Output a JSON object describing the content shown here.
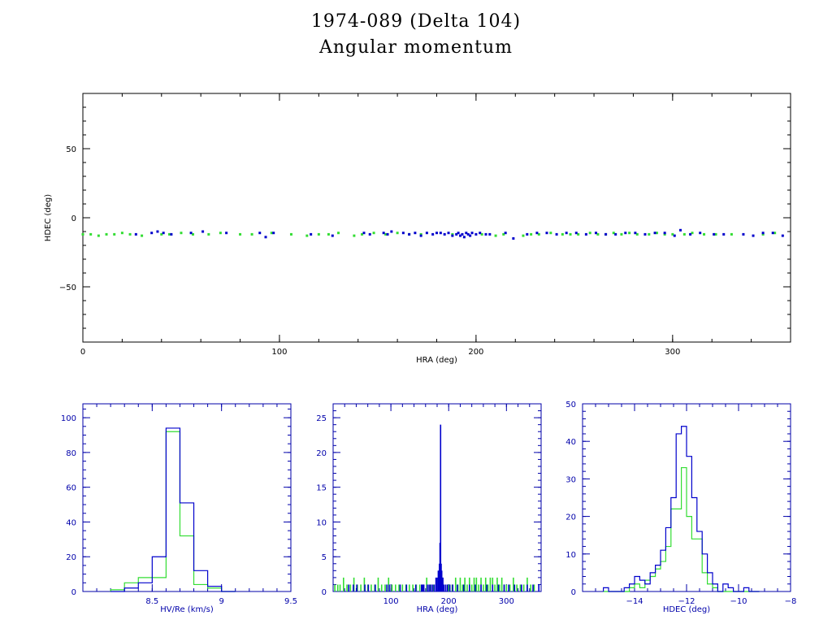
{
  "header": {
    "title": "1974-089 (Delta 104)",
    "subtitle": "Angular momentum"
  },
  "colors": {
    "blue": "#0000cc",
    "green": "#33dd33",
    "axis_main": "#000000",
    "axis_hist": "#0000aa"
  },
  "chart_data": [
    {
      "id": "scatter",
      "type": "scatter",
      "xlabel": "HRA (deg)",
      "ylabel": "HDEC (deg)",
      "xlim": [
        0,
        360
      ],
      "ylim": [
        -90,
        90
      ],
      "xticks": [
        0,
        100,
        200,
        300
      ],
      "yticks": [
        50,
        0,
        -50
      ],
      "series": [
        {
          "color": "blue",
          "x": [
            27,
            35,
            38,
            41,
            45,
            55,
            61,
            73,
            90,
            93,
            97,
            116,
            127,
            143,
            146,
            153,
            155,
            157,
            163,
            166,
            169,
            172,
            175,
            178,
            180,
            182,
            184,
            186,
            188,
            190,
            191,
            192,
            193,
            194,
            195,
            196,
            197,
            198,
            200,
            202,
            205,
            207,
            215,
            219,
            226,
            231,
            236,
            241,
            246,
            251,
            256,
            261,
            266,
            271,
            276,
            281,
            286,
            291,
            296,
            301,
            304,
            309,
            314,
            321,
            326,
            336,
            341,
            346,
            351,
            356
          ],
          "y": [
            -12,
            -11,
            -10,
            -11,
            -12,
            -11,
            -10,
            -11,
            -11,
            -14,
            -11,
            -12,
            -13,
            -11,
            -12,
            -11,
            -12,
            -10,
            -11,
            -12,
            -11,
            -13,
            -11,
            -12,
            -11,
            -11,
            -12,
            -11,
            -13,
            -12,
            -11,
            -13,
            -12,
            -14,
            -11,
            -12,
            -13,
            -11,
            -12,
            -11,
            -12,
            -12,
            -11,
            -15,
            -12,
            -11,
            -11,
            -12,
            -11,
            -11,
            -12,
            -11,
            -12,
            -12,
            -11,
            -11,
            -12,
            -11,
            -11,
            -13,
            -9,
            -12,
            -11,
            -12,
            -12,
            -12,
            -13,
            -11,
            -11,
            -13
          ]
        },
        {
          "color": "green",
          "x": [
            0,
            4,
            8,
            12,
            16,
            20,
            24,
            30,
            40,
            44,
            50,
            56,
            64,
            70,
            80,
            86,
            96,
            106,
            114,
            120,
            125,
            130,
            138,
            142,
            148,
            154,
            160,
            166,
            172,
            188,
            203,
            210,
            214,
            224,
            228,
            232,
            238,
            244,
            248,
            252,
            258,
            262,
            266,
            270,
            274,
            278,
            282,
            288,
            292,
            296,
            300,
            306,
            310,
            316,
            322,
            330,
            346,
            352
          ],
          "y": [
            -12,
            -12,
            -13,
            -12,
            -12,
            -11,
            -12,
            -13,
            -12,
            -12,
            -11,
            -12,
            -12,
            -11,
            -12,
            -12,
            -11,
            -12,
            -13,
            -12,
            -12,
            -11,
            -13,
            -12,
            -11,
            -12,
            -11,
            -12,
            -12,
            -12,
            -12,
            -13,
            -12,
            -13,
            -12,
            -12,
            -11,
            -12,
            -12,
            -12,
            -11,
            -12,
            -12,
            -11,
            -12,
            -11,
            -12,
            -12,
            -11,
            -12,
            -12,
            -12,
            -11,
            -12,
            -12,
            -12,
            -12,
            -11
          ]
        }
      ]
    },
    {
      "id": "hist-hv",
      "type": "bar",
      "xlabel": "HV/Re (km/s)",
      "xlim": [
        8.0,
        9.5
      ],
      "ylim": [
        0,
        108
      ],
      "xticks": [
        8.5,
        9,
        9.5
      ],
      "xticklabels": [
        "8.5",
        "9",
        "9.5"
      ],
      "yticks": [
        0,
        20,
        40,
        60,
        80,
        100
      ],
      "bin_edges": [
        8.2,
        8.3,
        8.4,
        8.5,
        8.6,
        8.7,
        8.8,
        8.9,
        9.0,
        9.1
      ],
      "series": [
        {
          "color": "blue",
          "values": [
            0,
            2,
            5,
            20,
            94,
            51,
            12,
            3,
            0
          ]
        },
        {
          "color": "green",
          "values": [
            1,
            5,
            8,
            8,
            92,
            32,
            4,
            2,
            0
          ]
        }
      ]
    },
    {
      "id": "hist-hra",
      "type": "bar",
      "xlabel": "HRA (deg)",
      "xlim": [
        0,
        360
      ],
      "ylim": [
        0,
        27
      ],
      "xticks": [
        100,
        200,
        300
      ],
      "yticks": [
        0,
        5,
        10,
        15,
        20,
        25
      ],
      "series": [
        {
          "color": "green",
          "x": [
            3,
            8,
            12,
            18,
            24,
            30,
            36,
            42,
            48,
            54,
            60,
            66,
            72,
            78,
            84,
            90,
            96,
            102,
            108,
            114,
            120,
            126,
            132,
            138,
            144,
            150,
            156,
            162,
            168,
            174,
            200,
            206,
            212,
            216,
            220,
            224,
            228,
            232,
            236,
            240,
            244,
            248,
            252,
            256,
            260,
            264,
            268,
            272,
            276,
            280,
            284,
            288,
            292,
            296,
            300,
            306,
            312,
            318,
            324,
            330,
            336,
            342,
            348
          ],
          "values": [
            1,
            1,
            1,
            2,
            1,
            1,
            2,
            1,
            1,
            2,
            1,
            1,
            1,
            2,
            1,
            1,
            2,
            1,
            1,
            1,
            1,
            1,
            1,
            1,
            1,
            1,
            1,
            2,
            1,
            1,
            1,
            1,
            2,
            1,
            2,
            1,
            2,
            1,
            2,
            1,
            2,
            2,
            1,
            2,
            1,
            2,
            1,
            2,
            2,
            1,
            2,
            1,
            2,
            1,
            1,
            1,
            2,
            1,
            1,
            1,
            2,
            1,
            1
          ]
        },
        {
          "color": "blue",
          "x": [
            27,
            35,
            41,
            55,
            61,
            73,
            93,
            97,
            116,
            127,
            143,
            153,
            155,
            157,
            163,
            166,
            169,
            172,
            175,
            178,
            180,
            182,
            183,
            184,
            185,
            186,
            187,
            188,
            189,
            190,
            192,
            195,
            198,
            202,
            207,
            215,
            226,
            236,
            246,
            256,
            266,
            276,
            286,
            296,
            304,
            314,
            326,
            336,
            346,
            356
          ],
          "values": [
            1,
            1,
            1,
            1,
            1,
            1,
            1,
            1,
            1,
            1,
            1,
            1,
            1,
            1,
            1,
            1,
            1,
            1,
            1,
            2,
            2,
            3,
            3,
            4,
            7,
            24,
            4,
            3,
            2,
            2,
            1,
            1,
            1,
            1,
            1,
            1,
            1,
            1,
            1,
            1,
            1,
            1,
            1,
            1,
            1,
            1,
            1,
            1,
            1,
            1
          ]
        }
      ]
    },
    {
      "id": "hist-hdec",
      "type": "bar",
      "xlabel": "HDEC (deg)",
      "xlim": [
        -16,
        -8
      ],
      "ylim": [
        0,
        50
      ],
      "xticks": [
        -14,
        -12,
        -10,
        -8
      ],
      "xticklabels": [
        "-14",
        "-12",
        "-10",
        "-8"
      ],
      "yticks": [
        0,
        10,
        20,
        30,
        40,
        50
      ],
      "bin_edges": [
        -15.2,
        -15.0,
        -14.8,
        -14.6,
        -14.4,
        -14.2,
        -14.0,
        -13.8,
        -13.6,
        -13.4,
        -13.2,
        -13.0,
        -12.8,
        -12.6,
        -12.4,
        -12.2,
        -12.0,
        -11.8,
        -11.6,
        -11.4,
        -11.2,
        -11.0,
        -10.8,
        -10.6,
        -10.4,
        -10.2,
        -10.0,
        -9.8,
        -9.6,
        -9.4,
        -9.2
      ],
      "series": [
        {
          "color": "blue",
          "values": [
            1,
            0,
            0,
            0,
            1,
            2,
            4,
            3,
            2,
            5,
            7,
            11,
            17,
            25,
            42,
            44,
            36,
            25,
            16,
            10,
            5,
            2,
            0,
            2,
            1,
            0,
            0,
            1,
            0,
            0
          ]
        },
        {
          "color": "green",
          "values": [
            0,
            0,
            0,
            0,
            0,
            1,
            2,
            1,
            3,
            4,
            6,
            8,
            12,
            22,
            22,
            33,
            20,
            14,
            14,
            5,
            2,
            1,
            0,
            0,
            0,
            0,
            0,
            0,
            0,
            0
          ]
        }
      ]
    }
  ]
}
